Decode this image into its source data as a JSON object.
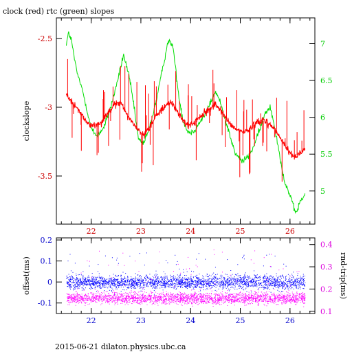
{
  "page": {
    "title": "clock (red) rtc (green) slopes",
    "footer": "2015-06-21 dilaton.physics.ubc.ca"
  },
  "colors": {
    "clock": "#ff0000",
    "rtc": "#00dd00",
    "offset": "#0000ff",
    "roundtrip": "#ff00ff",
    "axis_left": "#cc0000",
    "axis_right": "#00cc00",
    "axis_bottom_top": "#cc0000",
    "axis_bottom_panel": "#0000cc",
    "axis_right_bottom": "#dd00dd"
  },
  "chart_data": [
    {
      "type": "line",
      "x_ticks": [
        "22",
        "23",
        "24",
        "25",
        "26"
      ],
      "xlim": [
        21.3,
        26.5
      ],
      "ylabel": "clockslope",
      "ylim": [
        -3.85,
        -2.35
      ],
      "y_ticks": [
        "-2.5",
        "-3",
        "-3.5"
      ],
      "y2lim": [
        4.55,
        7.35
      ],
      "y2_ticks": [
        "7",
        "6.5",
        "6",
        "5.5",
        "5"
      ],
      "grid": false,
      "series": [
        {
          "name": "clock",
          "axis": "left",
          "points": [
            [
              21.5,
              -2.91
            ],
            [
              21.7,
              -3.0
            ],
            [
              21.9,
              -3.1
            ],
            [
              22.0,
              -3.14
            ],
            [
              22.2,
              -3.11
            ],
            [
              22.35,
              -3.03
            ],
            [
              22.5,
              -2.97
            ],
            [
              22.6,
              -2.97
            ],
            [
              22.75,
              -3.07
            ],
            [
              22.9,
              -3.14
            ],
            [
              23.05,
              -3.21
            ],
            [
              23.2,
              -3.13
            ],
            [
              23.35,
              -3.04
            ],
            [
              23.5,
              -2.99
            ],
            [
              23.6,
              -2.96
            ],
            [
              23.75,
              -3.04
            ],
            [
              23.9,
              -3.13
            ],
            [
              24.05,
              -3.12
            ],
            [
              24.2,
              -3.07
            ],
            [
              24.35,
              -3.02
            ],
            [
              24.5,
              -2.98
            ],
            [
              24.6,
              -3.02
            ],
            [
              24.75,
              -3.1
            ],
            [
              24.9,
              -3.16
            ],
            [
              25.05,
              -3.18
            ],
            [
              25.2,
              -3.16
            ],
            [
              25.35,
              -3.1
            ],
            [
              25.5,
              -3.1
            ],
            [
              25.65,
              -3.14
            ],
            [
              25.8,
              -3.22
            ],
            [
              25.95,
              -3.31
            ],
            [
              26.1,
              -3.36
            ],
            [
              26.2,
              -3.33
            ],
            [
              26.3,
              -3.31
            ]
          ]
        },
        {
          "name": "rtc",
          "axis": "right",
          "points": [
            [
              21.5,
              7.0
            ],
            [
              21.55,
              7.15
            ],
            [
              21.6,
              7.05
            ],
            [
              21.7,
              6.65
            ],
            [
              21.85,
              6.3
            ],
            [
              22.0,
              5.85
            ],
            [
              22.1,
              5.75
            ],
            [
              22.25,
              5.85
            ],
            [
              22.4,
              6.15
            ],
            [
              22.55,
              6.55
            ],
            [
              22.65,
              6.85
            ],
            [
              22.75,
              6.6
            ],
            [
              22.85,
              6.2
            ],
            [
              22.95,
              5.7
            ],
            [
              23.05,
              5.65
            ],
            [
              23.15,
              5.8
            ],
            [
              23.3,
              6.2
            ],
            [
              23.45,
              6.7
            ],
            [
              23.55,
              7.05
            ],
            [
              23.65,
              6.95
            ],
            [
              23.75,
              6.35
            ],
            [
              23.85,
              5.95
            ],
            [
              23.95,
              5.8
            ],
            [
              24.05,
              5.8
            ],
            [
              24.15,
              5.9
            ],
            [
              24.3,
              6.05
            ],
            [
              24.4,
              6.2
            ],
            [
              24.5,
              6.35
            ],
            [
              24.6,
              6.2
            ],
            [
              24.75,
              5.85
            ],
            [
              24.9,
              5.5
            ],
            [
              25.05,
              5.4
            ],
            [
              25.2,
              5.5
            ],
            [
              25.35,
              5.75
            ],
            [
              25.5,
              6.05
            ],
            [
              25.6,
              6.15
            ],
            [
              25.7,
              5.85
            ],
            [
              25.8,
              5.45
            ],
            [
              25.9,
              5.1
            ],
            [
              26.0,
              4.95
            ],
            [
              26.1,
              4.7
            ],
            [
              26.15,
              4.75
            ],
            [
              26.2,
              4.85
            ],
            [
              26.3,
              4.95
            ]
          ]
        }
      ]
    },
    {
      "type": "scatter",
      "x_ticks": [
        "22",
        "23",
        "24",
        "25",
        "26"
      ],
      "xlim": [
        21.3,
        26.5
      ],
      "ylabel": "offset(ms)",
      "ylim": [
        -0.15,
        0.21
      ],
      "y_ticks": [
        "0.2",
        "0.1",
        "0",
        "-0.1"
      ],
      "y2label": "rnd-trip(ms)",
      "y2lim": [
        0.09,
        0.43
      ],
      "y2_ticks": [
        "0.4",
        "0.3",
        "0.2",
        "0.1"
      ],
      "grid": false,
      "series": [
        {
          "name": "offset",
          "axis": "left",
          "center": 0.0,
          "spread": 0.03,
          "x_range": [
            21.5,
            26.3
          ]
        },
        {
          "name": "rnd-trip",
          "axis": "right",
          "center": 0.16,
          "spread": 0.025,
          "x_range": [
            21.5,
            26.3
          ]
        }
      ]
    }
  ]
}
